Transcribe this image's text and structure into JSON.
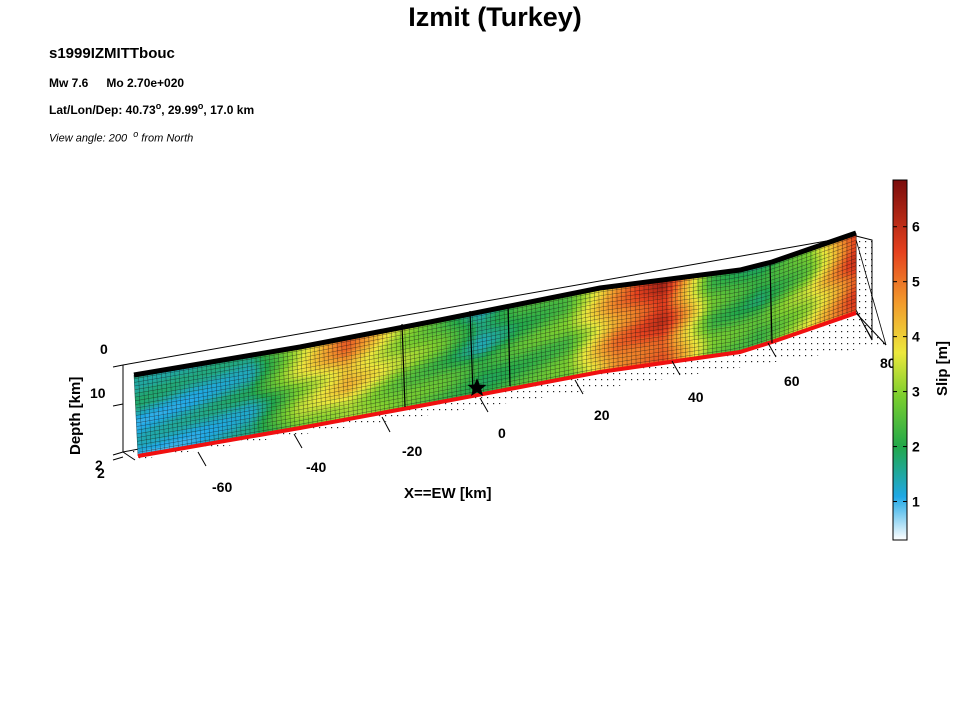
{
  "title": "Izmit (Turkey)",
  "event_id": "s1999IZMITTbouc",
  "magnitude": "Mw 7.6",
  "moment": "Mo 2.70e+020",
  "location_label": "Lat/Lon/Dep:",
  "lat": "40.73",
  "lon": "29.99",
  "depth": "17.0 km",
  "degree_symbol": "o",
  "view_prefix": "View angle: 200",
  "view_suffix": "from North",
  "chart_data": {
    "type": "heatmap",
    "xlabel": "X==EW [km]",
    "ylabel": "Depth [km]",
    "x_ticks": [
      "-60",
      "-40",
      "-20",
      "0",
      "20",
      "40",
      "60",
      "80"
    ],
    "depth_ticks": [
      "0",
      "10",
      "2",
      "2"
    ],
    "colorbar": {
      "label": "Slip [m]",
      "ticks": [
        "1",
        "2",
        "3",
        "4",
        "5",
        "6"
      ],
      "range": [
        0.3,
        6.85
      ]
    },
    "slip_along_strike": {
      "x_km": [
        -72,
        -60,
        -48,
        -38,
        -28,
        -18,
        -8,
        0,
        8,
        18,
        28,
        38,
        48,
        58,
        68,
        78
      ],
      "shallow_m": [
        1.8,
        1.5,
        1.6,
        3.5,
        5.3,
        3.5,
        2.6,
        1.3,
        2.2,
        2.6,
        4.6,
        6.3,
        2.4,
        1.8,
        2.6,
        5.8
      ],
      "deep_m": [
        1.0,
        1.2,
        1.5,
        3.0,
        3.2,
        2.6,
        2.4,
        2.2,
        2.4,
        2.7,
        5.0,
        5.2,
        2.7,
        2.5,
        3.6,
        5.5
      ]
    }
  }
}
